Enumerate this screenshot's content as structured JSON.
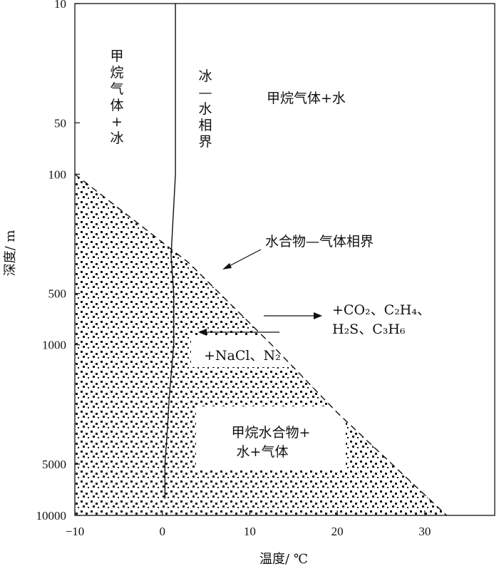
{
  "chart_data": {
    "type": "line",
    "xlabel": "温度/ ℃",
    "ylabel": "深度/ m",
    "x_ticks": [
      -10,
      0,
      10,
      20,
      30
    ],
    "x_tick_labels": [
      "−10",
      "0",
      "10",
      "20",
      "30"
    ],
    "xlim": [
      -10,
      38
    ],
    "y_scale": "log",
    "y_ticks": [
      10,
      50,
      100,
      500,
      1000,
      5000,
      10000
    ],
    "y_tick_labels": [
      "10",
      "50",
      "100",
      "500",
      "1000",
      "5000",
      "10000"
    ],
    "ylim": [
      10,
      10000
    ],
    "y_inverted": true,
    "grid": false,
    "series": [
      {
        "key": "ice_water",
        "style": "solid",
        "points": [
          [
            1.5,
            10
          ],
          [
            1.5,
            100
          ],
          [
            1.0,
            300
          ],
          [
            1.3,
            500
          ],
          [
            1.3,
            1000
          ],
          [
            0.8,
            2000
          ],
          [
            0.6,
            3000
          ],
          [
            0.3,
            5000
          ],
          [
            0.3,
            8000
          ]
        ]
      },
      {
        "key": "hydrate_gas",
        "style": "dashed",
        "points": [
          [
            -10,
            100
          ],
          [
            1.2,
            280
          ],
          [
            3.0,
            330
          ],
          [
            12.5,
            1000
          ],
          [
            20,
            2500
          ],
          [
            32.5,
            10000
          ]
        ]
      }
    ],
    "stable_region": "dotted",
    "annotations": {
      "methane_ice": "甲烷气体+冰",
      "ice_water_boundary": "冰—水相界",
      "methane_water": "甲烷气体+水",
      "hydrate_gas_boundary": "水合物—气体相界",
      "co2_line1": "+CO₂、C₂H₄、",
      "co2_line2": "H₂S、C₃H₆",
      "nacl": "+NaCl、N₂",
      "hydrate_line1": "甲烷水合物+",
      "hydrate_line2": "水+气体"
    }
  }
}
